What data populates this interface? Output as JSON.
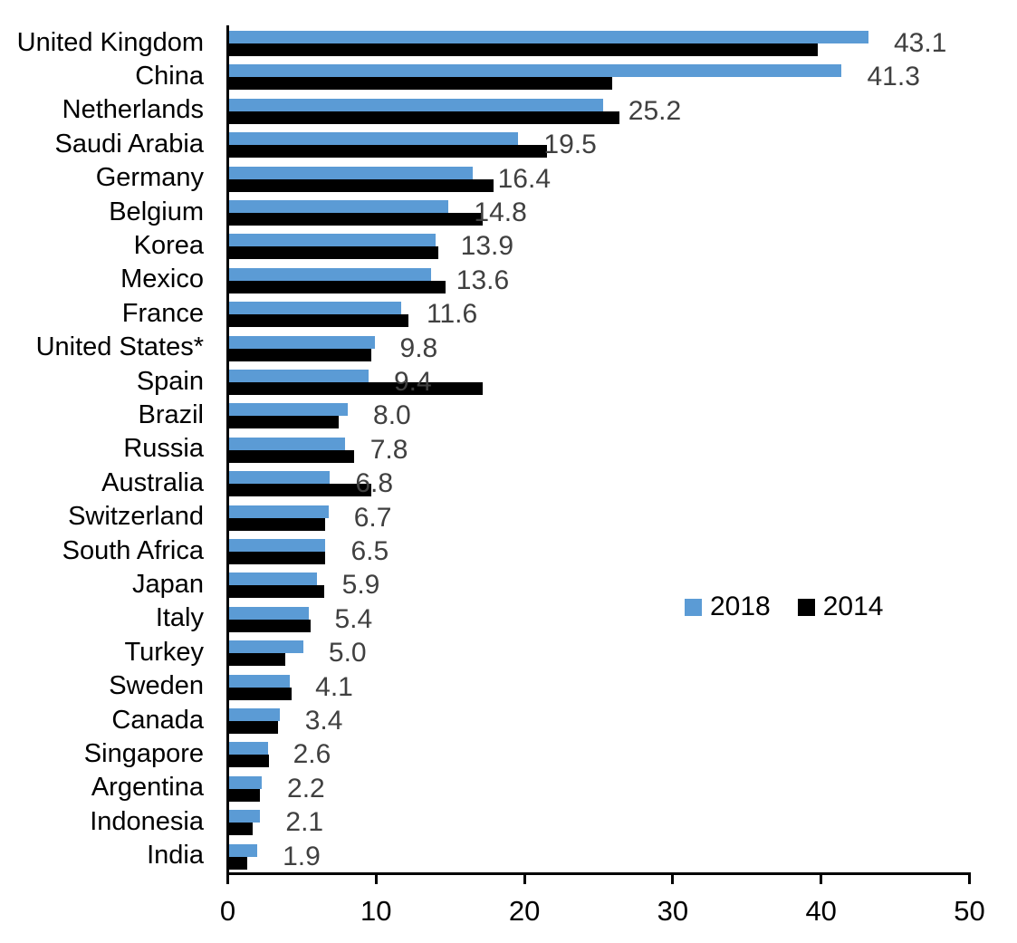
{
  "chart_data": {
    "type": "bar",
    "orientation": "horizontal",
    "title": "",
    "xlabel": "",
    "ylabel": "",
    "xlim": [
      0,
      50
    ],
    "x_ticks": [
      "0",
      "10",
      "20",
      "30",
      "40",
      "50"
    ],
    "grid": false,
    "legend_position": "middle-right",
    "value_label_color": "#404040",
    "categories": [
      "United Kingdom",
      "China",
      "Netherlands",
      "Saudi Arabia",
      "Germany",
      "Belgium",
      "Korea",
      "Mexico",
      "France",
      "United States*",
      "Spain",
      "Brazil",
      "Russia",
      "Australia",
      "Switzerland",
      "South Africa",
      "Japan",
      "Italy",
      "Turkey",
      "Sweden",
      "Canada",
      "Singapore",
      "Argentina",
      "Indonesia",
      "India"
    ],
    "series": [
      {
        "name": "2018",
        "color": "#5B9BD5",
        "values": [
          43.1,
          41.3,
          25.2,
          19.5,
          16.4,
          14.8,
          13.9,
          13.6,
          11.6,
          9.8,
          9.4,
          8.0,
          7.8,
          6.8,
          6.7,
          6.5,
          5.9,
          5.4,
          5.0,
          4.1,
          3.4,
          2.6,
          2.2,
          2.1,
          1.9
        ],
        "value_labels": [
          "43.1",
          "41.3",
          "25.2",
          "19.5",
          "16.4",
          "14.8",
          "13.9",
          "13.6",
          "11.6",
          "9.8",
          "9.4",
          "8.0",
          "7.8",
          "6.8",
          "6.7",
          "6.5",
          "5.9",
          "5.4",
          "5.0",
          "4.1",
          "3.4",
          "2.6",
          "2.2",
          "2.1",
          "1.9"
        ]
      },
      {
        "name": "2014",
        "color": "#000000",
        "values": [
          39.7,
          25.8,
          26.3,
          21.4,
          17.8,
          17.1,
          14.1,
          14.6,
          12.1,
          9.6,
          17.1,
          7.4,
          8.4,
          9.6,
          6.5,
          6.5,
          6.4,
          5.5,
          3.8,
          4.2,
          3.3,
          2.7,
          2.1,
          1.6,
          1.2
        ]
      }
    ]
  }
}
